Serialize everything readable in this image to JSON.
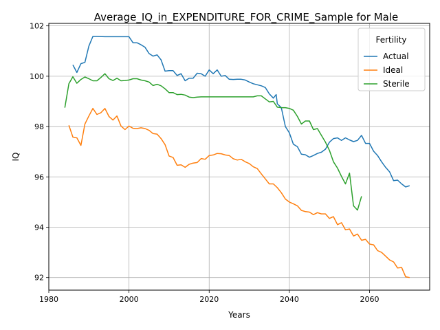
{
  "chart_data": {
    "type": "line",
    "title": "Average_IQ_in_EXPENDITURE_FOR_CRIME_Sample for Male",
    "xlabel": "Years",
    "ylabel": "IQ",
    "xlim": [
      1980,
      2075
    ],
    "ylim": [
      91.5,
      102.1
    ],
    "xticks": [
      1980,
      2000,
      2020,
      2040,
      2060
    ],
    "yticks": [
      92,
      94,
      96,
      98,
      100,
      102
    ],
    "grid": true,
    "legend": {
      "title": "Fertility",
      "position": "top-right"
    },
    "series": [
      {
        "name": "Actual",
        "color": "#1f77b4",
        "points": [
          [
            1986,
            100.45
          ],
          [
            1987,
            100.15
          ],
          [
            1988,
            100.5
          ],
          [
            1989,
            100.55
          ],
          [
            1990,
            101.2
          ],
          [
            1991,
            101.58
          ],
          [
            1992,
            101.58
          ],
          [
            1994,
            101.57
          ],
          [
            1996,
            101.57
          ],
          [
            1998,
            101.57
          ],
          [
            2000,
            101.57
          ],
          [
            2001,
            101.33
          ],
          [
            2002,
            101.33
          ],
          [
            2003,
            101.25
          ],
          [
            2004,
            101.15
          ],
          [
            2005,
            100.9
          ],
          [
            2006,
            100.8
          ],
          [
            2007,
            100.85
          ],
          [
            2008,
            100.65
          ],
          [
            2009,
            100.2
          ],
          [
            2010,
            100.22
          ],
          [
            2011,
            100.22
          ],
          [
            2012,
            100.03
          ],
          [
            2013,
            100.1
          ],
          [
            2014,
            99.82
          ],
          [
            2015,
            99.92
          ],
          [
            2016,
            99.92
          ],
          [
            2017,
            100.12
          ],
          [
            2018,
            100.1
          ],
          [
            2019,
            100.0
          ],
          [
            2020,
            100.25
          ],
          [
            2021,
            100.1
          ],
          [
            2022,
            100.25
          ],
          [
            2023,
            100.0
          ],
          [
            2024,
            100.03
          ],
          [
            2025,
            99.88
          ],
          [
            2026,
            99.87
          ],
          [
            2027,
            99.88
          ],
          [
            2028,
            99.88
          ],
          [
            2029,
            99.85
          ],
          [
            2030,
            99.77
          ],
          [
            2031,
            99.7
          ],
          [
            2032,
            99.66
          ],
          [
            2033,
            99.62
          ],
          [
            2034,
            99.55
          ],
          [
            2035,
            99.3
          ],
          [
            2036,
            99.13
          ],
          [
            2036.7,
            99.27
          ],
          [
            2037,
            98.9
          ],
          [
            2038,
            98.75
          ],
          [
            2039,
            98.0
          ],
          [
            2040,
            97.75
          ],
          [
            2041,
            97.3
          ],
          [
            2042,
            97.2
          ],
          [
            2043,
            96.9
          ],
          [
            2044,
            96.88
          ],
          [
            2045,
            96.78
          ],
          [
            2046,
            96.85
          ],
          [
            2047,
            96.93
          ],
          [
            2048,
            96.98
          ],
          [
            2049,
            97.1
          ],
          [
            2050,
            97.38
          ],
          [
            2051,
            97.52
          ],
          [
            2052,
            97.55
          ],
          [
            2053,
            97.45
          ],
          [
            2054,
            97.55
          ],
          [
            2055,
            97.47
          ],
          [
            2056,
            97.4
          ],
          [
            2057,
            97.45
          ],
          [
            2058,
            97.65
          ],
          [
            2059,
            97.33
          ],
          [
            2060,
            97.33
          ],
          [
            2061,
            97.02
          ],
          [
            2062,
            96.85
          ],
          [
            2063,
            96.6
          ],
          [
            2064,
            96.38
          ],
          [
            2065,
            96.2
          ],
          [
            2066,
            95.85
          ],
          [
            2067,
            95.87
          ],
          [
            2068,
            95.72
          ],
          [
            2069,
            95.6
          ],
          [
            2070,
            95.65
          ]
        ]
      },
      {
        "name": "Ideal",
        "color": "#ff7f0e",
        "points": [
          [
            1985,
            98.05
          ],
          [
            1986,
            97.58
          ],
          [
            1987,
            97.55
          ],
          [
            1988,
            97.25
          ],
          [
            1989,
            98.1
          ],
          [
            1990,
            98.42
          ],
          [
            1991,
            98.72
          ],
          [
            1992,
            98.48
          ],
          [
            1993,
            98.55
          ],
          [
            1994,
            98.72
          ],
          [
            1995,
            98.4
          ],
          [
            1996,
            98.26
          ],
          [
            1997,
            98.42
          ],
          [
            1998,
            98.02
          ],
          [
            1999,
            97.88
          ],
          [
            2000,
            98.02
          ],
          [
            2001,
            97.93
          ],
          [
            2002,
            97.92
          ],
          [
            2003,
            97.95
          ],
          [
            2004,
            97.92
          ],
          [
            2005,
            97.85
          ],
          [
            2006,
            97.72
          ],
          [
            2007,
            97.7
          ],
          [
            2008,
            97.52
          ],
          [
            2009,
            97.28
          ],
          [
            2010,
            96.83
          ],
          [
            2011,
            96.77
          ],
          [
            2012,
            96.46
          ],
          [
            2013,
            96.48
          ],
          [
            2014,
            96.38
          ],
          [
            2015,
            96.5
          ],
          [
            2016,
            96.55
          ],
          [
            2017,
            96.57
          ],
          [
            2018,
            96.73
          ],
          [
            2019,
            96.7
          ],
          [
            2020,
            96.85
          ],
          [
            2021,
            96.87
          ],
          [
            2022,
            96.93
          ],
          [
            2023,
            96.92
          ],
          [
            2024,
            96.87
          ],
          [
            2025,
            96.85
          ],
          [
            2026,
            96.72
          ],
          [
            2027,
            96.67
          ],
          [
            2028,
            96.7
          ],
          [
            2029,
            96.6
          ],
          [
            2030,
            96.53
          ],
          [
            2031,
            96.4
          ],
          [
            2032,
            96.33
          ],
          [
            2033,
            96.12
          ],
          [
            2034,
            95.92
          ],
          [
            2035,
            95.72
          ],
          [
            2036,
            95.72
          ],
          [
            2037,
            95.57
          ],
          [
            2038,
            95.37
          ],
          [
            2039,
            95.12
          ],
          [
            2040,
            95.0
          ],
          [
            2041,
            94.93
          ],
          [
            2042,
            94.85
          ],
          [
            2043,
            94.67
          ],
          [
            2044,
            94.62
          ],
          [
            2045,
            94.6
          ],
          [
            2046,
            94.5
          ],
          [
            2047,
            94.58
          ],
          [
            2048,
            94.53
          ],
          [
            2049,
            94.53
          ],
          [
            2050,
            94.35
          ],
          [
            2051,
            94.42
          ],
          [
            2052,
            94.1
          ],
          [
            2053,
            94.18
          ],
          [
            2054,
            93.9
          ],
          [
            2055,
            93.93
          ],
          [
            2056,
            93.65
          ],
          [
            2057,
            93.73
          ],
          [
            2058,
            93.48
          ],
          [
            2059,
            93.52
          ],
          [
            2060,
            93.33
          ],
          [
            2061,
            93.3
          ],
          [
            2062,
            93.07
          ],
          [
            2063,
            93.0
          ],
          [
            2064,
            92.85
          ],
          [
            2065,
            92.7
          ],
          [
            2066,
            92.62
          ],
          [
            2067,
            92.38
          ],
          [
            2068,
            92.4
          ],
          [
            2069,
            92.03
          ],
          [
            2070,
            92.0
          ]
        ]
      },
      {
        "name": "Sterile",
        "color": "#2ca02c",
        "points": [
          [
            1984,
            98.75
          ],
          [
            1985,
            99.7
          ],
          [
            1986,
            99.98
          ],
          [
            1987,
            99.72
          ],
          [
            1988,
            99.87
          ],
          [
            1989,
            99.97
          ],
          [
            1990,
            99.9
          ],
          [
            1991,
            99.82
          ],
          [
            1992,
            99.82
          ],
          [
            1993,
            99.95
          ],
          [
            1994,
            100.1
          ],
          [
            1995,
            99.9
          ],
          [
            1996,
            99.83
          ],
          [
            1997,
            99.92
          ],
          [
            1998,
            99.82
          ],
          [
            1999,
            99.83
          ],
          [
            2000,
            99.85
          ],
          [
            2001,
            99.9
          ],
          [
            2002,
            99.9
          ],
          [
            2003,
            99.85
          ],
          [
            2004,
            99.82
          ],
          [
            2005,
            99.77
          ],
          [
            2006,
            99.63
          ],
          [
            2007,
            99.68
          ],
          [
            2008,
            99.62
          ],
          [
            2009,
            99.5
          ],
          [
            2010,
            99.35
          ],
          [
            2011,
            99.35
          ],
          [
            2012,
            99.27
          ],
          [
            2013,
            99.28
          ],
          [
            2014,
            99.25
          ],
          [
            2015,
            99.17
          ],
          [
            2016,
            99.15
          ],
          [
            2017,
            99.17
          ],
          [
            2018,
            99.18
          ],
          [
            2020,
            99.18
          ],
          [
            2022,
            99.18
          ],
          [
            2024,
            99.18
          ],
          [
            2026,
            99.18
          ],
          [
            2028,
            99.18
          ],
          [
            2030,
            99.18
          ],
          [
            2031,
            99.18
          ],
          [
            2032,
            99.22
          ],
          [
            2033,
            99.22
          ],
          [
            2034,
            99.1
          ],
          [
            2035,
            98.98
          ],
          [
            2036,
            99.0
          ],
          [
            2037,
            98.77
          ],
          [
            2038,
            98.75
          ],
          [
            2039,
            98.75
          ],
          [
            2040,
            98.72
          ],
          [
            2041,
            98.65
          ],
          [
            2042,
            98.4
          ],
          [
            2043,
            98.1
          ],
          [
            2044,
            98.22
          ],
          [
            2045,
            98.22
          ],
          [
            2046,
            97.88
          ],
          [
            2047,
            97.92
          ],
          [
            2048,
            97.65
          ],
          [
            2049,
            97.38
          ],
          [
            2050,
            97.05
          ],
          [
            2051,
            96.6
          ],
          [
            2052,
            96.35
          ],
          [
            2053,
            96.02
          ],
          [
            2054,
            95.72
          ],
          [
            2055,
            96.15
          ],
          [
            2056,
            94.85
          ],
          [
            2057,
            94.68
          ],
          [
            2058,
            95.23
          ]
        ]
      }
    ]
  }
}
